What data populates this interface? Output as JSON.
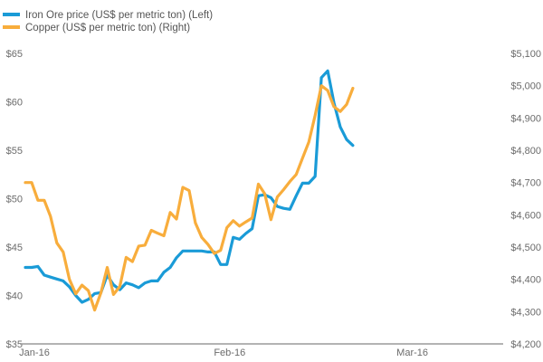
{
  "chart_data": {
    "type": "line",
    "title": "",
    "xlabel": "",
    "legend_position": "top-left",
    "grid": false,
    "x_axis": {
      "ticks": [
        "Jan-16",
        "Feb-16",
        "Mar-16"
      ],
      "tick_days": [
        0,
        31,
        60
      ],
      "range_days": [
        0,
        72
      ]
    },
    "y_left": {
      "label": "",
      "range": [
        35,
        65
      ],
      "ticks": [
        35,
        40,
        45,
        50,
        55,
        60,
        65
      ],
      "tick_labels": [
        "$35",
        "$40",
        "$45",
        "$50",
        "$55",
        "$60",
        "$65"
      ]
    },
    "y_right": {
      "label": "",
      "range": [
        4200,
        5100
      ],
      "ticks": [
        4200,
        4300,
        4400,
        4500,
        4600,
        4700,
        4800,
        4900,
        5000,
        5100
      ],
      "tick_labels": [
        "$4,200",
        "$4,300",
        "$4,400",
        "$4,500",
        "$4,600",
        "$4,700",
        "$4,800",
        "$4,900",
        "$5,000",
        "$5,100"
      ]
    },
    "series": [
      {
        "name": "Iron Ore price (US$ per metric ton)  (Left)",
        "axis": "left",
        "color": "#1a9bd7",
        "points": [
          [
            0,
            42.9
          ],
          [
            1,
            42.9
          ],
          [
            2,
            43.0
          ],
          [
            3,
            42.1
          ],
          [
            4,
            41.9
          ],
          [
            5,
            41.7
          ],
          [
            6,
            41.5
          ],
          [
            7,
            40.9
          ],
          [
            8,
            40.0
          ],
          [
            9,
            39.3
          ],
          [
            10,
            39.6
          ],
          [
            11,
            40.2
          ],
          [
            12,
            40.3
          ],
          [
            13,
            42.1
          ],
          [
            14,
            41.1
          ],
          [
            15,
            40.6
          ],
          [
            16,
            41.3
          ],
          [
            17,
            41.1
          ],
          [
            18,
            40.8
          ],
          [
            19,
            41.3
          ],
          [
            20,
            41.5
          ],
          [
            21,
            41.5
          ],
          [
            22,
            42.4
          ],
          [
            23,
            42.9
          ],
          [
            24,
            43.9
          ],
          [
            25,
            44.6
          ],
          [
            26,
            44.6
          ],
          [
            27,
            44.6
          ],
          [
            28,
            44.6
          ],
          [
            29,
            44.5
          ],
          [
            30,
            44.5
          ],
          [
            31,
            43.2
          ],
          [
            32,
            43.2
          ],
          [
            33,
            46.0
          ],
          [
            34,
            45.8
          ],
          [
            35,
            46.4
          ],
          [
            36,
            46.9
          ],
          [
            37,
            50.3
          ],
          [
            38,
            50.4
          ],
          [
            39,
            50.1
          ],
          [
            40,
            49.2
          ],
          [
            41,
            49.0
          ],
          [
            42,
            48.9
          ],
          [
            43,
            50.3
          ],
          [
            44,
            51.6
          ],
          [
            45,
            51.6
          ],
          [
            46,
            52.3
          ],
          [
            47,
            62.5
          ],
          [
            48,
            63.2
          ],
          [
            49,
            59.9
          ],
          [
            50,
            57.4
          ],
          [
            51,
            56.1
          ],
          [
            52,
            55.5
          ]
        ]
      },
      {
        "name": "Copper (US$ per metric ton)  (Right)",
        "axis": "right",
        "color": "#f8ad3c",
        "points": [
          [
            0,
            4700
          ],
          [
            1,
            4700
          ],
          [
            2,
            4645
          ],
          [
            3,
            4645
          ],
          [
            4,
            4595
          ],
          [
            5,
            4513
          ],
          [
            6,
            4485
          ],
          [
            7,
            4400
          ],
          [
            8,
            4355
          ],
          [
            9,
            4382
          ],
          [
            10,
            4365
          ],
          [
            11,
            4305
          ],
          [
            12,
            4358
          ],
          [
            13,
            4437
          ],
          [
            14,
            4353
          ],
          [
            15,
            4378
          ],
          [
            16,
            4468
          ],
          [
            17,
            4455
          ],
          [
            18,
            4503
          ],
          [
            19,
            4506
          ],
          [
            20,
            4552
          ],
          [
            21,
            4543
          ],
          [
            22,
            4535
          ],
          [
            23,
            4607
          ],
          [
            24,
            4587
          ],
          [
            25,
            4685
          ],
          [
            26,
            4675
          ],
          [
            27,
            4575
          ],
          [
            28,
            4530
          ],
          [
            29,
            4508
          ],
          [
            30,
            4480
          ],
          [
            31,
            4490
          ],
          [
            32,
            4560
          ],
          [
            33,
            4582
          ],
          [
            34,
            4565
          ],
          [
            35,
            4578
          ],
          [
            36,
            4590
          ],
          [
            37,
            4695
          ],
          [
            38,
            4665
          ],
          [
            39,
            4585
          ],
          [
            40,
            4655
          ],
          [
            41,
            4678
          ],
          [
            42,
            4703
          ],
          [
            43,
            4725
          ],
          [
            44,
            4775
          ],
          [
            45,
            4825
          ],
          [
            46,
            4908
          ],
          [
            47,
            5000
          ],
          [
            48,
            4985
          ],
          [
            49,
            4935
          ],
          [
            50,
            4920
          ],
          [
            51,
            4942
          ],
          [
            52,
            4992
          ]
        ]
      }
    ]
  }
}
